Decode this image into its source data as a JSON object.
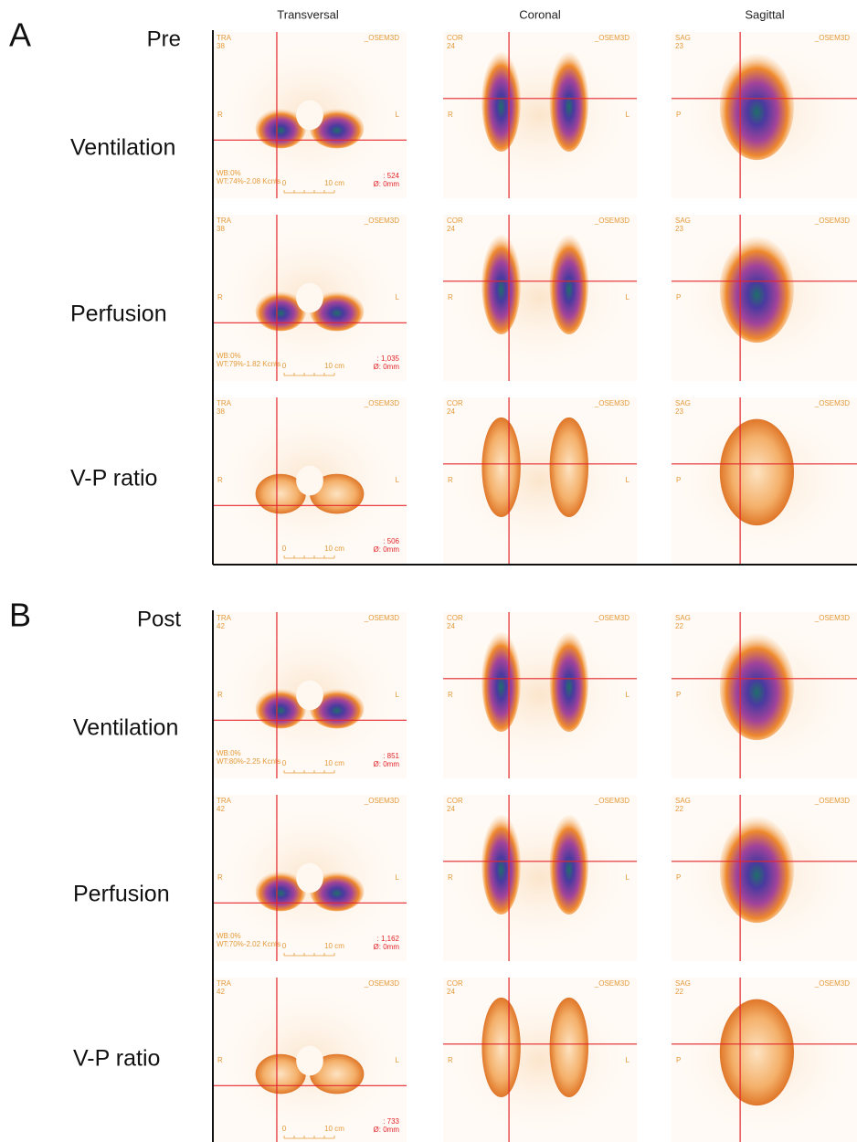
{
  "columns": [
    "Transversal",
    "Coronal",
    "Sagittal"
  ],
  "sections": [
    {
      "letter": "A",
      "phase": "Pre",
      "rows": [
        {
          "label": "Ventilation",
          "panels": [
            {
              "view": "TRA",
              "slice": "38",
              "recon": "_OSEM3D",
              "sides": [
                "R",
                "L"
              ],
              "notes": [
                "WB:0%",
                "WT:74%-2.08 Kcnts"
              ],
              "readout": [
                ": 524",
                "Ø: 0mm"
              ],
              "scale": [
                "0",
                "10 cm"
              ]
            },
            {
              "view": "COR",
              "slice": "24",
              "recon": "_OSEM3D",
              "sides": [
                "R",
                "L"
              ]
            },
            {
              "view": "SAG",
              "slice": "23",
              "recon": "_OSEM3D",
              "sides": [
                "P"
              ]
            }
          ]
        },
        {
          "label": "Perfusion",
          "panels": [
            {
              "view": "TRA",
              "slice": "38",
              "recon": "_OSEM3D",
              "sides": [
                "R",
                "L"
              ],
              "notes": [
                "WB:0%",
                "WT:79%-1.82 Kcnts"
              ],
              "readout": [
                ": 1,035",
                "Ø: 0mm"
              ],
              "scale": [
                "0",
                "10 cm"
              ]
            },
            {
              "view": "COR",
              "slice": "24",
              "recon": "_OSEM3D",
              "sides": [
                "R",
                "L"
              ]
            },
            {
              "view": "SAG",
              "slice": "23",
              "recon": "_OSEM3D",
              "sides": [
                "P"
              ]
            }
          ]
        },
        {
          "label": "V-P ratio",
          "panels": [
            {
              "view": "TRA",
              "slice": "38",
              "recon": "_OSEM3D",
              "sides": [
                "R",
                "L"
              ],
              "readout": [
                ": 506",
                "Ø: 0mm"
              ],
              "scale": [
                "0",
                "10 cm"
              ]
            },
            {
              "view": "COR",
              "slice": "24",
              "recon": "_OSEM3D",
              "sides": [
                "R",
                "L"
              ]
            },
            {
              "view": "SAG",
              "slice": "23",
              "recon": "_OSEM3D",
              "sides": [
                "P"
              ]
            }
          ]
        }
      ]
    },
    {
      "letter": "B",
      "phase": "Post",
      "rows": [
        {
          "label": "Ventilation",
          "panels": [
            {
              "view": "TRA",
              "slice": "42",
              "recon": "_OSEM3D",
              "sides": [
                "R",
                "L"
              ],
              "notes": [
                "WB:0%",
                "WT:80%-2.25 Kcnts"
              ],
              "readout": [
                ": 851",
                "Ø: 0mm"
              ],
              "scale": [
                "0",
                "10 cm"
              ]
            },
            {
              "view": "COR",
              "slice": "24",
              "recon": "_OSEM3D",
              "sides": [
                "R",
                "L"
              ]
            },
            {
              "view": "SAG",
              "slice": "22",
              "recon": "_OSEM3D",
              "sides": [
                "P"
              ]
            }
          ]
        },
        {
          "label": "Perfusion",
          "panels": [
            {
              "view": "TRA",
              "slice": "42",
              "recon": "_OSEM3D",
              "sides": [
                "R",
                "L"
              ],
              "notes": [
                "WB:0%",
                "WT:70%-2.02 Kcnts"
              ],
              "readout": [
                ": 1,162",
                "Ø: 0mm"
              ],
              "scale": [
                "0",
                "10 cm"
              ]
            },
            {
              "view": "COR",
              "slice": "24",
              "recon": "_OSEM3D",
              "sides": [
                "R",
                "L"
              ]
            },
            {
              "view": "SAG",
              "slice": "22",
              "recon": "_OSEM3D",
              "sides": [
                "P"
              ]
            }
          ]
        },
        {
          "label": "V-P ratio",
          "panels": [
            {
              "view": "TRA",
              "slice": "42",
              "recon": "_OSEM3D",
              "sides": [
                "R",
                "L"
              ],
              "readout": [
                ": 733",
                "Ø: 0mm"
              ],
              "scale": [
                "0",
                "10 cm"
              ]
            },
            {
              "view": "COR",
              "slice": "24",
              "recon": "_OSEM3D",
              "sides": [
                "R",
                "L"
              ]
            },
            {
              "view": "SAG",
              "slice": "22",
              "recon": "_OSEM3D",
              "sides": [
                "P"
              ]
            }
          ]
        }
      ]
    }
  ]
}
